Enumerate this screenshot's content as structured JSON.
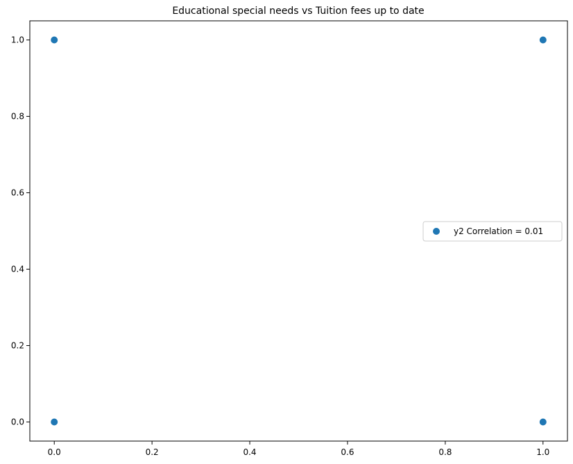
{
  "chart_data": {
    "type": "scatter",
    "title": "Educational special needs vs Tuition fees up to date",
    "xlabel": "",
    "ylabel": "",
    "xlim": [
      -0.05,
      1.05
    ],
    "ylim": [
      -0.05,
      1.05
    ],
    "x_ticks": [
      "0.0",
      "0.2",
      "0.4",
      "0.6",
      "0.8",
      "1.0"
    ],
    "y_ticks": [
      "0.0",
      "0.2",
      "0.4",
      "0.6",
      "0.8",
      "1.0"
    ],
    "grid": false,
    "legend_position": "center-right",
    "series": [
      {
        "name": "y2 Correlation = 0.01",
        "color": "#1f77b4",
        "points": [
          {
            "x": 0,
            "y": 1
          },
          {
            "x": 1,
            "y": 1
          },
          {
            "x": 0,
            "y": 0
          },
          {
            "x": 1,
            "y": 0
          }
        ]
      }
    ]
  }
}
